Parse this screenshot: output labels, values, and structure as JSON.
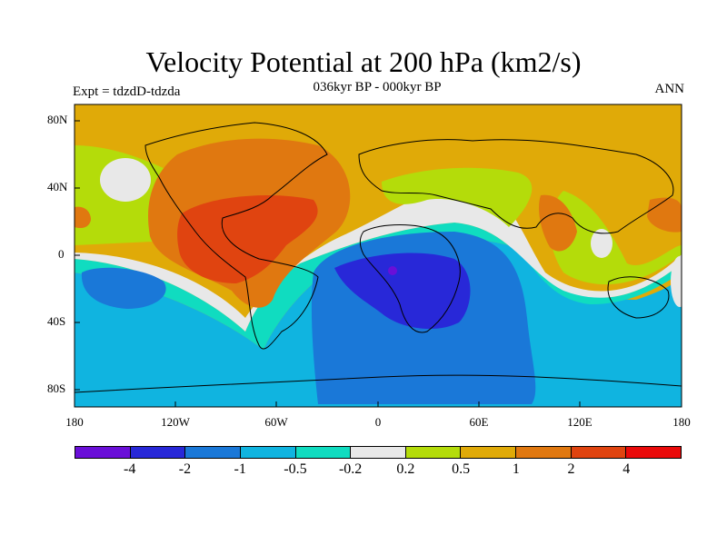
{
  "title": "Velocity Potential at 200 hPa (km2/s)",
  "subtitle": "036kyr BP - 000kyr BP",
  "left_label": "Expt = tdzdD-tdzda",
  "right_label": "ANN",
  "lat_labels": [
    "80N",
    "40N",
    "0",
    "40S",
    "80S"
  ],
  "lon_labels": [
    "180",
    "120W",
    "60W",
    "0",
    "60E",
    "120E",
    "180"
  ],
  "colorbar": {
    "colors": [
      "#6a0fd8",
      "#2828d8",
      "#1a78d8",
      "#10b4e0",
      "#10dcc0",
      "#e8e8e8",
      "#b4dc0a",
      "#e0aa08",
      "#e07810",
      "#e04410",
      "#ea0a0a"
    ],
    "labels": [
      "-4",
      "-2",
      "-1",
      "-0.5",
      "-0.2",
      "0.2",
      "0.5",
      "1",
      "2",
      "4"
    ]
  }
}
